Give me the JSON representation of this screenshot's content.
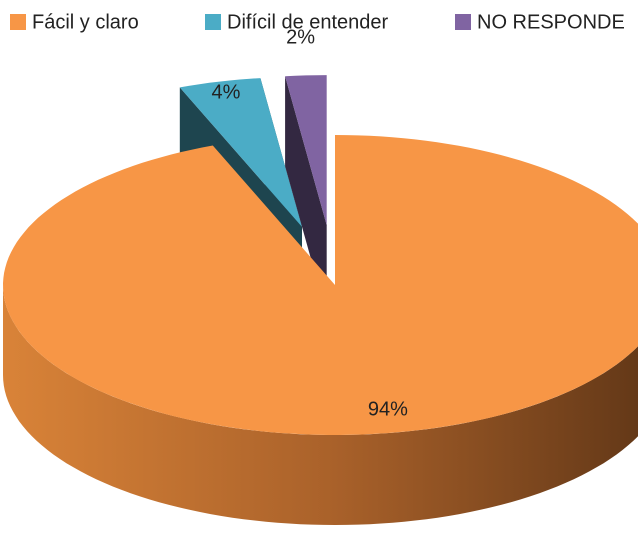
{
  "chart_data": {
    "type": "pie3d",
    "categories": [
      "Fácil y claro",
      "Difícil de entender",
      "NO RESPONDE"
    ],
    "values": [
      94,
      4,
      2
    ],
    "value_labels": [
      "94%",
      "4%",
      "2%"
    ],
    "colors": [
      "#f79646",
      "#4bacc6",
      "#8064a2"
    ],
    "legend": "top"
  }
}
